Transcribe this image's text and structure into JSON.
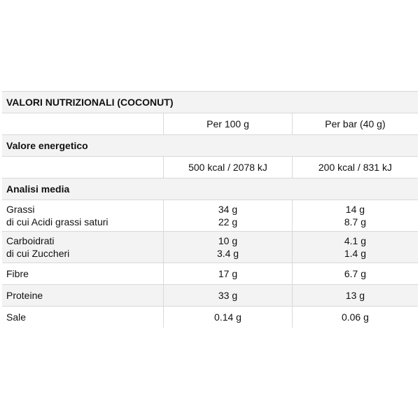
{
  "table": {
    "title": "VALORI NUTRIZIONALI (COCONUT)",
    "columns": [
      "Per 100 g",
      "Per bar (40 g)"
    ],
    "energy_section": "Valore energetico",
    "energy": [
      "500 kcal / 2078 kJ",
      "200 kcal / 831 kJ"
    ],
    "analysis_section": "Analisi media",
    "rows": [
      {
        "label": "Grassi",
        "sublabel": "di cui Acidi grassi saturi",
        "v1": "34 g",
        "v1_sub": "22 g",
        "v2": "14 g",
        "v2_sub": "8.7 g"
      },
      {
        "label": "Carboidrati",
        "sublabel": "di cui Zuccheri",
        "v1": "10 g",
        "v1_sub": "3.4 g",
        "v2": "4.1 g",
        "v2_sub": "1.4 g"
      },
      {
        "label": "Fibre",
        "v1": "17 g",
        "v2": "6.7 g"
      },
      {
        "label": "Proteine",
        "v1": "33 g",
        "v2": "13 g"
      },
      {
        "label": "Sale",
        "v1": "0.14 g",
        "v2": "0.06 g"
      }
    ]
  }
}
